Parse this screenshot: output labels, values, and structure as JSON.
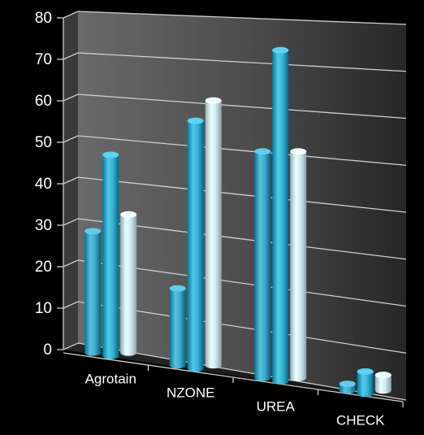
{
  "chart_data": {
    "type": "bar",
    "style": "3d-cylinder-perspective",
    "categories": [
      "Agrotain",
      "NZONE",
      "UREA",
      "CHECK"
    ],
    "series": [
      {
        "values": [
          29,
          18,
          52,
          1.5
        ],
        "color": "#3ea9c9"
      },
      {
        "values": [
          48,
          58,
          76,
          5
        ],
        "color": "#39b0d1"
      },
      {
        "values": [
          33,
          62,
          52,
          3.5
        ],
        "color": "#cfe6ee"
      }
    ],
    "y_ticks": [
      "0",
      "10",
      "20",
      "30",
      "40",
      "50",
      "60",
      "70",
      "80"
    ],
    "ylim": [
      0,
      80
    ],
    "grid": true,
    "background": "#000000",
    "wall_color": "#5a5a5a",
    "gridline_color": "#cfcfcf",
    "label_color": "#ffffff"
  }
}
